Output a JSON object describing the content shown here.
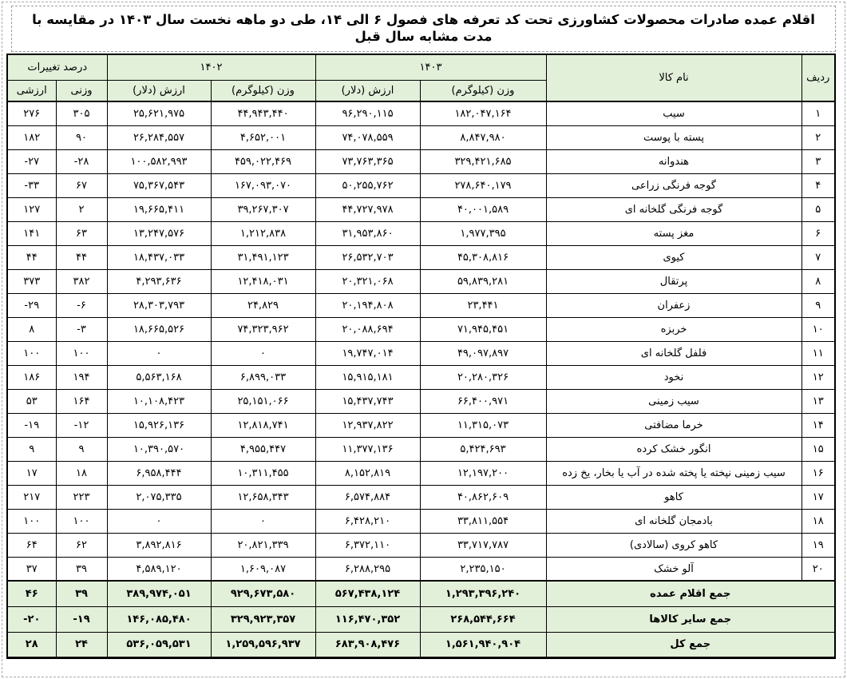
{
  "page": {
    "title": "اقلام عمده صادرات محصولات کشاورزی تحت کد تعرفه های فصول ۶ الی ۱۴، طی دو ماهه نخست سال ۱۴۰۳ در مقایسه با مدت مشابه سال قبل"
  },
  "colors": {
    "header_bg": "#e2efd9",
    "border": "#000000",
    "page_border_dashed": "#a8aea8",
    "text": "#000000"
  },
  "table": {
    "header": {
      "row_label": "ردیف",
      "product_label": "نام کالا",
      "year_1403": "۱۴۰۳",
      "year_1402": "۱۴۰۲",
      "percent_change": "درصد تغییرات",
      "weight_kg": "وزن (کیلوگرم)",
      "value_usd": "ارزش (دلار)",
      "weight_pct": "وزنی",
      "value_pct": "ارزشی"
    },
    "rows": [
      {
        "no": "۱",
        "name": "سیب",
        "w1403": "۱۸۲,۰۴۷,۱۶۴",
        "v1403": "۹۶,۲۹۰,۱۱۵",
        "w1402": "۴۴,۹۴۳,۴۴۰",
        "v1402": "۲۵,۶۲۱,۹۷۵",
        "wpct": "۳۰۵",
        "vpct": "۲۷۶"
      },
      {
        "no": "۲",
        "name": "پسته با پوست",
        "w1403": "۸,۸۴۷,۹۸۰",
        "v1403": "۷۴,۰۷۸,۵۵۹",
        "w1402": "۴,۶۵۲,۰۰۱",
        "v1402": "۲۶,۲۸۴,۵۵۷",
        "wpct": "۹۰",
        "vpct": "۱۸۲"
      },
      {
        "no": "۳",
        "name": "هندوانه",
        "w1403": "۳۲۹,۴۲۱,۶۸۵",
        "v1403": "۷۳,۷۶۳,۳۶۵",
        "w1402": "۴۵۹,۰۲۲,۴۶۹",
        "v1402": "۱۰۰,۵۸۲,۹۹۳",
        "wpct": "-۲۸",
        "vpct": "-۲۷"
      },
      {
        "no": "۴",
        "name": "گوجه فرنگی زراعی",
        "w1403": "۲۷۸,۶۴۰,۱۷۹",
        "v1403": "۵۰,۲۵۵,۷۶۲",
        "w1402": "۱۶۷,۰۹۳,۰۷۰",
        "v1402": "۷۵,۳۶۷,۵۴۳",
        "wpct": "۶۷",
        "vpct": "-۳۳"
      },
      {
        "no": "۵",
        "name": "گوجه فرنگی گلخانه ای",
        "w1403": "۴۰,۰۰۱,۵۸۹",
        "v1403": "۴۴,۷۲۷,۹۷۸",
        "w1402": "۳۹,۲۶۷,۳۰۷",
        "v1402": "۱۹,۶۶۵,۴۱۱",
        "wpct": "۲",
        "vpct": "۱۲۷"
      },
      {
        "no": "۶",
        "name": "مغز پسته",
        "w1403": "۱,۹۷۷,۳۹۵",
        "v1403": "۳۱,۹۵۳,۸۶۰",
        "w1402": "۱,۲۱۲,۸۳۸",
        "v1402": "۱۳,۲۴۷,۵۷۶",
        "wpct": "۶۳",
        "vpct": "۱۴۱"
      },
      {
        "no": "۷",
        "name": "کیوی",
        "w1403": "۴۵,۳۰۸,۸۱۶",
        "v1403": "۲۶,۵۳۲,۷۰۳",
        "w1402": "۳۱,۴۹۱,۱۲۳",
        "v1402": "۱۸,۴۳۷,۰۳۳",
        "wpct": "۴۴",
        "vpct": "۴۴"
      },
      {
        "no": "۸",
        "name": "پرتقال",
        "w1403": "۵۹,۸۳۹,۲۸۱",
        "v1403": "۲۰,۳۲۱,۰۶۸",
        "w1402": "۱۲,۴۱۸,۰۳۱",
        "v1402": "۴,۲۹۳,۶۳۶",
        "wpct": "۳۸۲",
        "vpct": "۳۷۳"
      },
      {
        "no": "۹",
        "name": "زعفران",
        "w1403": "۲۳,۴۴۱",
        "v1403": "۲۰,۱۹۴,۸۰۸",
        "w1402": "۲۴,۸۲۹",
        "v1402": "۲۸,۳۰۳,۷۹۳",
        "wpct": "-۶",
        "vpct": "-۲۹"
      },
      {
        "no": "۱۰",
        "name": "خربزه",
        "w1403": "۷۱,۹۴۵,۴۵۱",
        "v1403": "۲۰,۰۸۸,۶۹۴",
        "w1402": "۷۴,۳۲۳,۹۶۲",
        "v1402": "۱۸,۶۶۵,۵۲۶",
        "wpct": "-۳",
        "vpct": "۸"
      },
      {
        "no": "۱۱",
        "name": "فلفل گلخانه ای",
        "w1403": "۴۹,۰۹۷,۸۹۷",
        "v1403": "۱۹,۷۴۷,۰۱۴",
        "w1402": "۰",
        "v1402": "۰",
        "wpct": "۱۰۰",
        "vpct": "۱۰۰"
      },
      {
        "no": "۱۲",
        "name": "نخود",
        "w1403": "۲۰,۲۸۰,۳۲۶",
        "v1403": "۱۵,۹۱۵,۱۸۱",
        "w1402": "۶,۸۹۹,۰۳۳",
        "v1402": "۵,۵۶۳,۱۶۸",
        "wpct": "۱۹۴",
        "vpct": "۱۸۶"
      },
      {
        "no": "۱۳",
        "name": "سیب زمینی",
        "w1403": "۶۶,۴۰۰,۹۷۱",
        "v1403": "۱۵,۴۳۷,۷۴۳",
        "w1402": "۲۵,۱۵۱,۰۶۶",
        "v1402": "۱۰,۱۰۸,۴۲۳",
        "wpct": "۱۶۴",
        "vpct": "۵۳"
      },
      {
        "no": "۱۴",
        "name": "خرما مضافتی",
        "w1403": "۱۱,۳۱۵,۰۷۳",
        "v1403": "۱۲,۹۳۷,۸۲۲",
        "w1402": "۱۲,۸۱۸,۷۴۱",
        "v1402": "۱۵,۹۲۶,۱۳۶",
        "wpct": "-۱۲",
        "vpct": "-۱۹"
      },
      {
        "no": "۱۵",
        "name": "انگور خشک کرده",
        "w1403": "۵,۴۲۴,۶۹۳",
        "v1403": "۱۱,۳۷۷,۱۳۶",
        "w1402": "۴,۹۵۵,۴۴۷",
        "v1402": "۱۰,۳۹۰,۵۷۰",
        "wpct": "۹",
        "vpct": "۹"
      },
      {
        "no": "۱۶",
        "name": "سیب زمینی نپخته یا پخته شده در آب یا بخار، یخ زده",
        "w1403": "۱۲,۱۹۷,۲۰۰",
        "v1403": "۸,۱۵۲,۸۱۹",
        "w1402": "۱۰,۳۱۱,۴۵۵",
        "v1402": "۶,۹۵۸,۴۴۴",
        "wpct": "۱۸",
        "vpct": "۱۷"
      },
      {
        "no": "۱۷",
        "name": "کاهو",
        "w1403": "۴۰,۸۶۲,۶۰۹",
        "v1403": "۶,۵۷۴,۸۸۴",
        "w1402": "۱۲,۶۵۸,۳۴۳",
        "v1402": "۲,۰۷۵,۳۳۵",
        "wpct": "۲۲۳",
        "vpct": "۲۱۷"
      },
      {
        "no": "۱۸",
        "name": "بادمجان گلخانه ای",
        "w1403": "۳۳,۸۱۱,۵۵۴",
        "v1403": "۶,۴۲۸,۲۱۰",
        "w1402": "۰",
        "v1402": "۰",
        "wpct": "۱۰۰",
        "vpct": "۱۰۰"
      },
      {
        "no": "۱۹",
        "name": "کاهو کروی (سالادی)",
        "w1403": "۳۳,۷۱۷,۷۸۷",
        "v1403": "۶,۳۷۲,۱۱۰",
        "w1402": "۲۰,۸۲۱,۳۳۹",
        "v1402": "۳,۸۹۲,۸۱۶",
        "wpct": "۶۲",
        "vpct": "۶۴"
      },
      {
        "no": "۲۰",
        "name": "آلو خشک",
        "w1403": "۲,۲۳۵,۱۵۰",
        "v1403": "۶,۲۸۸,۲۹۵",
        "w1402": "۱,۶۰۹,۰۸۷",
        "v1402": "۴,۵۸۹,۱۲۰",
        "wpct": "۳۹",
        "vpct": "۳۷"
      }
    ],
    "summary": [
      {
        "name": "جمع اقلام عمده",
        "w1403": "۱,۲۹۳,۳۹۶,۲۴۰",
        "v1403": "۵۶۷,۴۳۸,۱۲۴",
        "w1402": "۹۲۹,۶۷۳,۵۸۰",
        "v1402": "۳۸۹,۹۷۴,۰۵۱",
        "wpct": "۳۹",
        "vpct": "۴۶"
      },
      {
        "name": "جمع سایر کالاها",
        "w1403": "۲۶۸,۵۴۴,۶۶۴",
        "v1403": "۱۱۶,۴۷۰,۳۵۲",
        "w1402": "۳۲۹,۹۲۳,۳۵۷",
        "v1402": "۱۴۶,۰۸۵,۴۸۰",
        "wpct": "-۱۹",
        "vpct": "-۲۰"
      },
      {
        "name": "جمع کل",
        "w1403": "۱,۵۶۱,۹۴۰,۹۰۴",
        "v1403": "۶۸۳,۹۰۸,۴۷۶",
        "w1402": "۱,۲۵۹,۵۹۶,۹۳۷",
        "v1402": "۵۳۶,۰۵۹,۵۳۱",
        "wpct": "۲۴",
        "vpct": "۲۸"
      }
    ]
  }
}
